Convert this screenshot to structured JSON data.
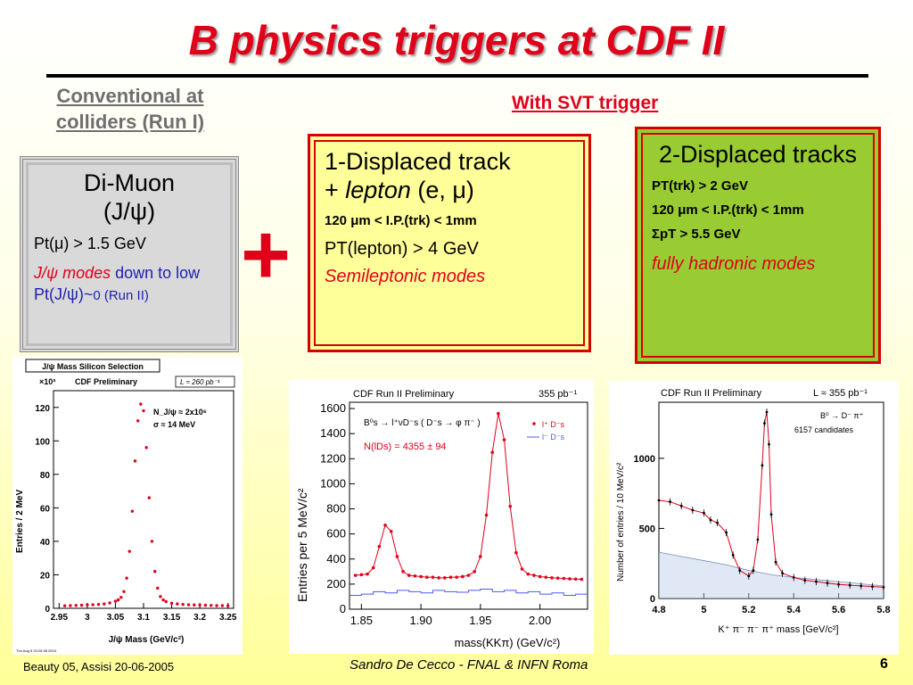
{
  "slide": {
    "title": "B physics triggers at CDF II",
    "conventional_heading": "Conventional at colliders (Run I)",
    "svt_heading": "With SVT trigger",
    "plus_sign": "+",
    "footer_left": "Beauty 05, Assisi 20-06-2005",
    "footer_center": "Sandro De Cecco - FNAL & INFN Roma",
    "page_number": "6"
  },
  "box_dimuon": {
    "title_line1": "Di-Muon",
    "title_line2": "(J/ψ)",
    "pt_cut": "Pt(μ) > 1.5 GeV",
    "modes_italic": "J/ψ modes",
    "modes_rest": " down to low Pt(J/ψ)~",
    "modes_tail": "0 (Run II)"
  },
  "box_lepton": {
    "title_line1": "1-Displaced track",
    "title_line2_prefix": "+ ",
    "title_line2_lepton": "lepton",
    "title_line2_suffix": " (e, μ)",
    "ip_cut": "120 μm < I.P.(trk) < 1mm",
    "pt_cut": "PT(lepton) > 4 GeV",
    "modes": "Semileptonic modes"
  },
  "box_hadronic": {
    "title": "2-Displaced tracks",
    "pt_cut": "PT(trk) > 2 GeV",
    "ip_cut": "120 μm < I.P.(trk) < 1mm",
    "sum_pt_cut": "ΣpT > 5.5 GeV",
    "modes": "fully hadronic modes"
  },
  "colors": {
    "accent_red": "#e0001a",
    "dimuon_box": "#d9d9d9",
    "lepton_box": "#ffff99",
    "hadronic_box": "#99cc33",
    "blue_text": "#1f1fb0"
  },
  "chart_data": [
    {
      "type": "scatter",
      "header_box": "J/ψ Mass Silicon Selection",
      "title": "CDF Preliminary",
      "luminosity": "L ≈ 260 pb⁻¹",
      "y_multiplier": "×10³",
      "xlabel": "J/ψ Mass (GeV/c²)",
      "ylabel": "Entries / 2 MeV",
      "x_ticks": [
        "2.95",
        "3",
        "3.05",
        "3.1",
        "3.15",
        "3.2",
        "3.25"
      ],
      "y_ticks": [
        "0",
        "20",
        "40",
        "60",
        "80",
        "100",
        "120"
      ],
      "xlim": [
        2.94,
        3.26
      ],
      "ylim": [
        0,
        130
      ],
      "annotations": [
        "N_J/ψ ≈ 2x10⁶",
        "σ ≈ 14 MeV"
      ],
      "timestamp": "Thu Aug  5 20:26:38 2004",
      "series": [
        {
          "x": [
            2.96,
            2.97,
            2.98,
            2.99,
            3.0,
            3.01,
            3.02,
            3.03,
            3.04,
            3.05,
            3.055,
            3.06,
            3.065,
            3.07,
            3.075,
            3.08,
            3.085,
            3.09,
            3.095,
            3.1,
            3.105,
            3.11,
            3.115,
            3.12,
            3.125,
            3.13,
            3.135,
            3.14,
            3.15,
            3.16,
            3.17,
            3.18,
            3.19,
            3.2,
            3.21,
            3.22,
            3.23,
            3.24,
            3.25
          ],
          "y": [
            1.5,
            1.6,
            1.7,
            1.8,
            2.0,
            2.1,
            2.3,
            2.6,
            3.2,
            4.2,
            5.0,
            6.5,
            10,
            18,
            34,
            58,
            88,
            112,
            122,
            118,
            96,
            66,
            40,
            22,
            12,
            7,
            5,
            4,
            3,
            2.6,
            2.3,
            2.1,
            2.0,
            1.9,
            1.8,
            1.7,
            1.6,
            1.6,
            1.5
          ]
        }
      ]
    },
    {
      "type": "line",
      "title": "CDF Run II Preliminary",
      "luminosity": "355 pb⁻¹",
      "xlabel": "mass(KKπ) (GeV/c²)",
      "ylabel": "Entries per 5 MeV/c²",
      "x_ticks": [
        "1.85",
        "1.90",
        "1.95",
        "2.00"
      ],
      "y_ticks": [
        "0",
        "200",
        "400",
        "600",
        "800",
        "1000",
        "1200",
        "1400",
        "1600"
      ],
      "xlim": [
        1.84,
        2.04
      ],
      "ylim": [
        0,
        1650
      ],
      "annotations": [
        "B⁰s → l⁺νD⁻s ( D⁻s → φ π⁻ )",
        "N(lDs) = 4355 ± 94"
      ],
      "legend": [
        "l⁺ D⁻s",
        "l⁻ D⁻s"
      ],
      "series": [
        {
          "name": "l⁺ D⁻s",
          "x": [
            1.845,
            1.85,
            1.855,
            1.86,
            1.865,
            1.87,
            1.875,
            1.88,
            1.885,
            1.89,
            1.895,
            1.9,
            1.905,
            1.91,
            1.915,
            1.92,
            1.925,
            1.93,
            1.935,
            1.94,
            1.945,
            1.95,
            1.955,
            1.96,
            1.965,
            1.97,
            1.975,
            1.98,
            1.985,
            1.99,
            1.995,
            2.0,
            2.005,
            2.01,
            2.015,
            2.02,
            2.025,
            2.03,
            2.035
          ],
          "y": [
            270,
            275,
            280,
            330,
            500,
            670,
            620,
            420,
            300,
            270,
            265,
            260,
            255,
            255,
            250,
            250,
            255,
            255,
            260,
            270,
            300,
            420,
            750,
            1250,
            1560,
            1350,
            820,
            450,
            320,
            280,
            270,
            260,
            255,
            250,
            248,
            245,
            242,
            240,
            238
          ]
        },
        {
          "name": "l⁻ D⁻s",
          "x": [
            1.845,
            1.855,
            1.865,
            1.875,
            1.885,
            1.895,
            1.905,
            1.915,
            1.925,
            1.935,
            1.945,
            1.955,
            1.965,
            1.975,
            1.985,
            1.995,
            2.005,
            2.015,
            2.025,
            2.035
          ],
          "y": [
            110,
            120,
            140,
            130,
            150,
            140,
            130,
            150,
            140,
            135,
            150,
            160,
            140,
            150,
            130,
            140,
            120,
            130,
            110,
            120
          ]
        }
      ]
    },
    {
      "type": "line",
      "title": "CDF Run II Preliminary",
      "luminosity": "L ≈ 355 pb⁻¹",
      "xlabel": "K⁺ π⁻ π⁻ π⁺ mass [GeV/c²]",
      "ylabel": "Number of entries / 10 MeV/c²",
      "x_ticks": [
        "4.8",
        "5",
        "5.2",
        "5.4",
        "5.6",
        "5.8"
      ],
      "y_ticks": [
        "0",
        "500",
        "1000"
      ],
      "xlim": [
        4.8,
        5.8
      ],
      "ylim": [
        0,
        1400
      ],
      "annotations": [
        "B⁰ → D⁻ π⁺",
        "6157 candidates"
      ],
      "series": [
        {
          "name": "data",
          "x": [
            4.8,
            4.85,
            4.9,
            4.95,
            5.0,
            5.03,
            5.06,
            5.1,
            5.13,
            5.16,
            5.2,
            5.22,
            5.24,
            5.26,
            5.27,
            5.28,
            5.29,
            5.3,
            5.32,
            5.35,
            5.4,
            5.45,
            5.5,
            5.55,
            5.6,
            5.65,
            5.7,
            5.75,
            5.8
          ],
          "y": [
            700,
            690,
            660,
            630,
            610,
            560,
            540,
            470,
            310,
            200,
            160,
            200,
            420,
            950,
            1250,
            1330,
            1100,
            600,
            260,
            180,
            150,
            130,
            120,
            110,
            100,
            95,
            90,
            85,
            80
          ]
        },
        {
          "name": "background",
          "x": [
            4.8,
            4.9,
            5.0,
            5.1,
            5.2,
            5.3,
            5.4,
            5.6,
            5.8
          ],
          "y": [
            330,
            300,
            270,
            240,
            200,
            170,
            150,
            120,
            90
          ]
        }
      ]
    }
  ]
}
